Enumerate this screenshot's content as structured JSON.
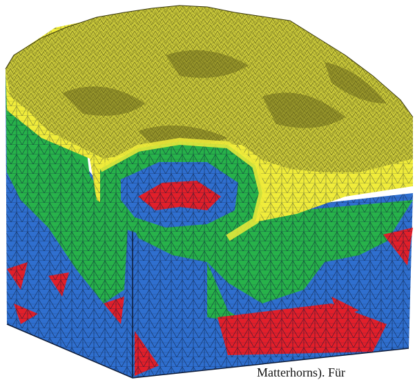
{
  "figure": {
    "subject": "3D tetrahedral finite-element mesh of mountainous terrain block",
    "colors": {
      "terrain": "#c9c83a",
      "terrain_dark": "#6e6c1d",
      "yellow": "#f0ec3a",
      "green": "#27b24a",
      "blue": "#2f6fcf",
      "red": "#e21f2a",
      "edge": "#0d1a36"
    }
  },
  "caption": {
    "text": "Matterhorns). Für"
  }
}
